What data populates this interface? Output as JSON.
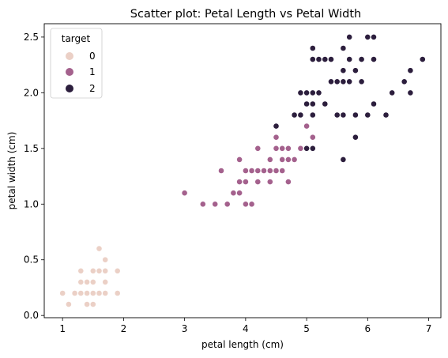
{
  "chart_data": {
    "type": "scatter",
    "title": "Scatter plot: Petal Length vs Petal Width",
    "xlabel": "petal length (cm)",
    "ylabel": "petal width (cm)",
    "xlim": [
      0.7,
      7.2
    ],
    "ylim": [
      -0.02,
      2.62
    ],
    "xticks": [
      1,
      2,
      3,
      4,
      5,
      6,
      7
    ],
    "xtick_labels": [
      "1",
      "2",
      "3",
      "4",
      "5",
      "6",
      "7"
    ],
    "yticks": [
      0.0,
      0.5,
      1.0,
      1.5,
      2.0,
      2.5
    ],
    "ytick_labels": [
      "0.0",
      "0.5",
      "1.0",
      "1.5",
      "2.0",
      "2.5"
    ],
    "grid": false,
    "legend": {
      "title": "target",
      "position": "top-left",
      "entries": [
        "0",
        "1",
        "2"
      ]
    },
    "colors": {
      "0": "#ebd0c6",
      "1": "#a4618d",
      "2": "#2c1e3d"
    },
    "series": [
      {
        "name": "0",
        "points": [
          [
            1.0,
            0.2
          ],
          [
            1.1,
            0.1
          ],
          [
            1.2,
            0.2
          ],
          [
            1.3,
            0.2
          ],
          [
            1.3,
            0.3
          ],
          [
            1.3,
            0.4
          ],
          [
            1.4,
            0.1
          ],
          [
            1.4,
            0.2
          ],
          [
            1.4,
            0.3
          ],
          [
            1.5,
            0.1
          ],
          [
            1.5,
            0.2
          ],
          [
            1.5,
            0.3
          ],
          [
            1.5,
            0.4
          ],
          [
            1.6,
            0.2
          ],
          [
            1.6,
            0.4
          ],
          [
            1.6,
            0.6
          ],
          [
            1.7,
            0.2
          ],
          [
            1.7,
            0.3
          ],
          [
            1.7,
            0.4
          ],
          [
            1.7,
            0.5
          ],
          [
            1.9,
            0.2
          ],
          [
            1.9,
            0.4
          ]
        ]
      },
      {
        "name": "1",
        "points": [
          [
            3.0,
            1.1
          ],
          [
            3.3,
            1.0
          ],
          [
            3.5,
            1.0
          ],
          [
            3.6,
            1.3
          ],
          [
            3.7,
            1.0
          ],
          [
            3.8,
            1.1
          ],
          [
            3.9,
            1.1
          ],
          [
            3.9,
            1.2
          ],
          [
            3.9,
            1.4
          ],
          [
            4.0,
            1.0
          ],
          [
            4.0,
            1.2
          ],
          [
            4.0,
            1.3
          ],
          [
            4.1,
            1.0
          ],
          [
            4.1,
            1.3
          ],
          [
            4.2,
            1.2
          ],
          [
            4.2,
            1.3
          ],
          [
            4.2,
            1.5
          ],
          [
            4.3,
            1.3
          ],
          [
            4.4,
            1.2
          ],
          [
            4.4,
            1.3
          ],
          [
            4.4,
            1.4
          ],
          [
            4.5,
            1.3
          ],
          [
            4.5,
            1.5
          ],
          [
            4.5,
            1.6
          ],
          [
            4.6,
            1.3
          ],
          [
            4.6,
            1.4
          ],
          [
            4.6,
            1.5
          ],
          [
            4.7,
            1.2
          ],
          [
            4.7,
            1.4
          ],
          [
            4.7,
            1.5
          ],
          [
            4.8,
            1.4
          ],
          [
            4.8,
            1.8
          ],
          [
            4.9,
            1.5
          ],
          [
            5.0,
            1.7
          ],
          [
            5.1,
            1.6
          ]
        ]
      },
      {
        "name": "2",
        "points": [
          [
            4.5,
            1.7
          ],
          [
            4.8,
            1.8
          ],
          [
            4.9,
            1.8
          ],
          [
            4.9,
            2.0
          ],
          [
            5.0,
            1.5
          ],
          [
            5.0,
            1.9
          ],
          [
            5.0,
            2.0
          ],
          [
            5.1,
            1.5
          ],
          [
            5.1,
            1.8
          ],
          [
            5.1,
            1.9
          ],
          [
            5.1,
            2.0
          ],
          [
            5.1,
            2.3
          ],
          [
            5.1,
            2.4
          ],
          [
            5.2,
            2.0
          ],
          [
            5.2,
            2.3
          ],
          [
            5.3,
            1.9
          ],
          [
            5.3,
            2.3
          ],
          [
            5.4,
            2.1
          ],
          [
            5.4,
            2.3
          ],
          [
            5.5,
            1.8
          ],
          [
            5.5,
            2.1
          ],
          [
            5.6,
            1.4
          ],
          [
            5.6,
            1.8
          ],
          [
            5.6,
            2.1
          ],
          [
            5.6,
            2.2
          ],
          [
            5.6,
            2.4
          ],
          [
            5.7,
            2.1
          ],
          [
            5.7,
            2.3
          ],
          [
            5.7,
            2.5
          ],
          [
            5.8,
            1.6
          ],
          [
            5.8,
            1.8
          ],
          [
            5.8,
            2.2
          ],
          [
            5.9,
            2.1
          ],
          [
            5.9,
            2.3
          ],
          [
            6.0,
            1.8
          ],
          [
            6.0,
            2.5
          ],
          [
            6.1,
            1.9
          ],
          [
            6.1,
            2.3
          ],
          [
            6.1,
            2.5
          ],
          [
            6.3,
            1.8
          ],
          [
            6.4,
            2.0
          ],
          [
            6.6,
            2.1
          ],
          [
            6.7,
            2.0
          ],
          [
            6.7,
            2.2
          ],
          [
            6.9,
            2.3
          ]
        ]
      }
    ]
  }
}
